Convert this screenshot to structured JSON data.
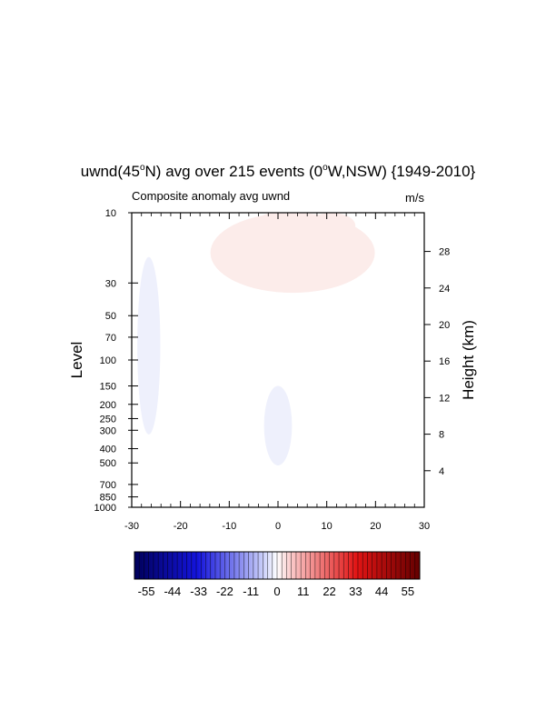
{
  "title": {
    "prefix": "uwnd(45",
    "sup1": "o",
    "mid": "N) avg over 215 events (0",
    "sup2": "o",
    "suffix": "W,NSW) {1949-2010}"
  },
  "chart_data": {
    "type": "heatmap",
    "subtitle_left": "Composite anomaly avg uwnd",
    "subtitle_right": "m/s",
    "xlabel": "",
    "ylabel": "Level",
    "y2label": "Height (km)",
    "xlim": [
      -30,
      30
    ],
    "x_ticks": [
      -30,
      -20,
      -10,
      0,
      10,
      20,
      30
    ],
    "y_scale": "log",
    "ylim": [
      1000,
      10
    ],
    "y_ticks": [
      10,
      30,
      50,
      70,
      100,
      150,
      200,
      250,
      300,
      400,
      500,
      700,
      850,
      1000
    ],
    "y2_ticks": [
      4,
      8,
      12,
      16,
      20,
      24,
      28
    ],
    "grid": false,
    "colorbar": {
      "colormap": "blue-white-red",
      "range": [
        -60,
        60
      ],
      "tick_labels": [
        -55,
        -44,
        -33,
        -22,
        -11,
        0,
        11,
        22,
        33,
        44,
        55
      ]
    },
    "features": [
      {
        "sign": "negative",
        "x_range": [
          -27,
          -26
        ],
        "p_range": [
          320,
          20
        ],
        "magnitude": "weak"
      },
      {
        "sign": "negative",
        "x_range": [
          -1,
          1
        ],
        "p_range": [
          520,
          150
        ],
        "magnitude": "weak"
      },
      {
        "sign": "positive",
        "x_range": [
          -12,
          18
        ],
        "p_range": [
          35,
          10
        ],
        "magnitude": "weak"
      },
      {
        "sign": "positive",
        "x_range": [
          -3,
          2
        ],
        "p_range": [
          15,
          10
        ],
        "magnitude": "weak"
      },
      {
        "sign": "positive",
        "x_range": [
          8,
          14
        ],
        "p_range": [
          15,
          10
        ],
        "magnitude": "weak"
      }
    ]
  }
}
